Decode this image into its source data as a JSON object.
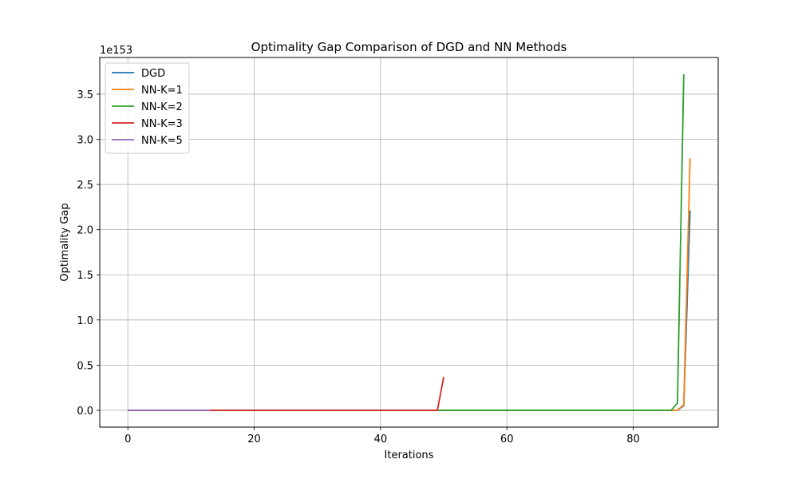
{
  "chart_data": {
    "type": "line",
    "title": "Optimality Gap Comparison of DGD and NN Methods",
    "xlabel": "Iterations",
    "ylabel": "Optimality Gap",
    "y_scale_label": "1e153",
    "xlim": [
      -4.45,
      93.45
    ],
    "ylim": [
      -0.186,
      3.906
    ],
    "x_ticks": [
      0,
      20,
      40,
      60,
      80
    ],
    "x_tick_labels": [
      "0",
      "20",
      "40",
      "60",
      "80"
    ],
    "y_ticks": [
      0.0,
      0.5,
      1.0,
      1.5,
      2.0,
      2.5,
      3.0,
      3.5
    ],
    "y_tick_labels": [
      "0.0",
      "0.5",
      "1.0",
      "1.5",
      "2.0",
      "2.5",
      "3.0",
      "3.5"
    ],
    "grid": true,
    "legend_position": "top-left",
    "series": [
      {
        "name": "DGD",
        "color": "#1f77b4",
        "x": [
          0,
          86,
          87,
          88,
          89
        ],
        "y": [
          0,
          0,
          0.002,
          0.05,
          2.21
        ]
      },
      {
        "name": "NN-K=1",
        "color": "#ff7f0e",
        "x": [
          0,
          86,
          87,
          88,
          89
        ],
        "y": [
          0,
          0,
          0.002,
          0.06,
          2.79
        ]
      },
      {
        "name": "NN-K=2",
        "color": "#2ca02c",
        "x": [
          0,
          86,
          87,
          88
        ],
        "y": [
          0,
          0,
          0.08,
          3.72
        ]
      },
      {
        "name": "NN-K=3",
        "color": "#d62728",
        "x": [
          0,
          49,
          50
        ],
        "y": [
          0,
          0,
          0.37
        ]
      },
      {
        "name": "NN-K=5",
        "color": "#9467bd",
        "x": [
          0,
          13
        ],
        "y": [
          0,
          0
        ]
      }
    ]
  }
}
